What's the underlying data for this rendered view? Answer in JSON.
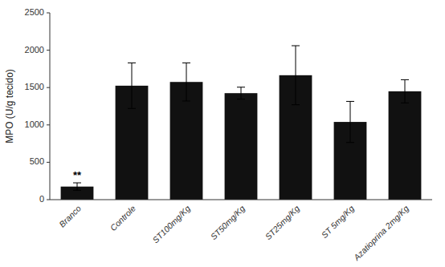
{
  "chart_data": {
    "type": "bar",
    "categories": [
      "Branco",
      "Controle",
      "ST100mg/Kg",
      "ST50mg/Kg",
      "ST25mg/Kg",
      "ST 5mg/Kg",
      "Azatioprina 2mg/Kg"
    ],
    "values": [
      175,
      1525,
      1575,
      1425,
      1665,
      1040,
      1450
    ],
    "errors": [
      50,
      305,
      255,
      80,
      395,
      275,
      155
    ],
    "color": "#111111",
    "ylabel": "MPO (U/g tecido)",
    "ylim": [
      0,
      2500
    ],
    "yticks": [
      0,
      500,
      1000,
      1500,
      2000,
      2500
    ],
    "annotations": [
      {
        "text": "**",
        "category": "Branco"
      }
    ],
    "grid": false
  }
}
